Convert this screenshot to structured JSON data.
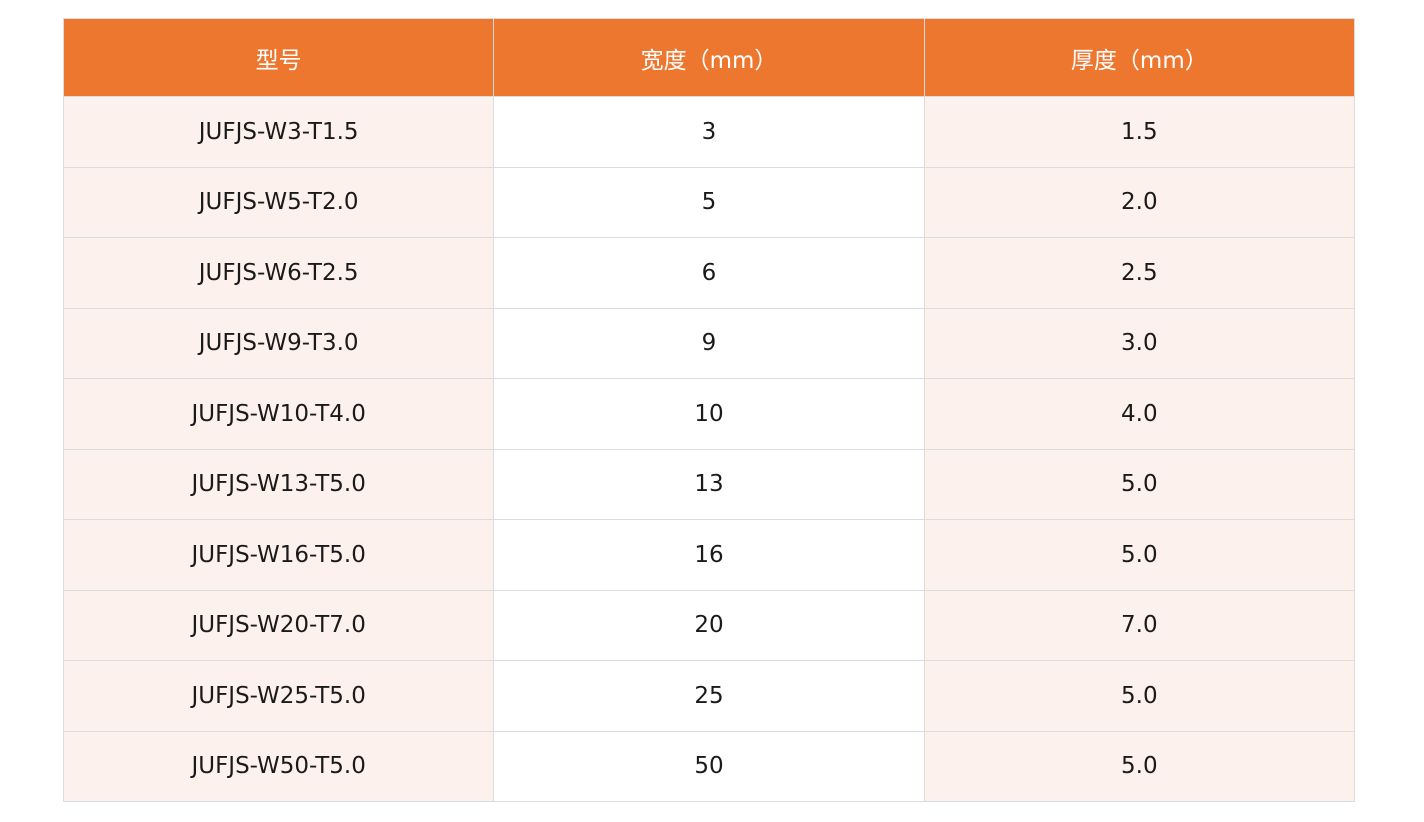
{
  "table": {
    "headers": [
      "型号",
      "宽度（mm）",
      "厚度（mm）"
    ],
    "rows": [
      [
        "JUFJS-W3-T1.5",
        "3",
        "1.5"
      ],
      [
        "JUFJS-W5-T2.0",
        "5",
        "2.0"
      ],
      [
        "JUFJS-W6-T2.5",
        "6",
        "2.5"
      ],
      [
        "JUFJS-W9-T3.0",
        "9",
        "3.0"
      ],
      [
        "JUFJS-W10-T4.0",
        "10",
        "4.0"
      ],
      [
        "JUFJS-W13-T5.0",
        "13",
        "5.0"
      ],
      [
        "JUFJS-W16-T5.0",
        "16",
        "5.0"
      ],
      [
        "JUFJS-W20-T7.0",
        "20",
        "7.0"
      ],
      [
        "JUFJS-W25-T5.0",
        "25",
        "5.0"
      ],
      [
        "JUFJS-W50-T5.0",
        "50",
        "5.0"
      ]
    ]
  },
  "colors": {
    "header_bg": "#ee7730",
    "tint_bg": "#fdf1ed"
  }
}
